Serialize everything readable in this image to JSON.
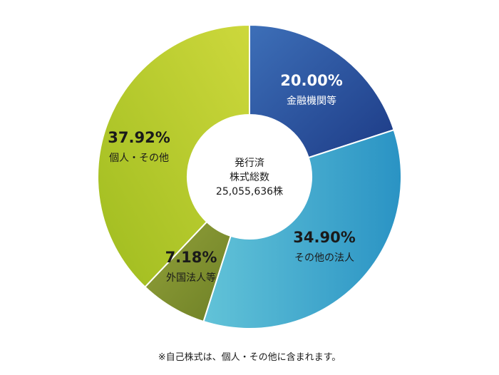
{
  "chart_data": {
    "type": "pie",
    "style": "donut",
    "categories": [
      "金融機関等",
      "その他の法人",
      "外国法人等",
      "個人・その他"
    ],
    "values": [
      20.0,
      34.9,
      7.18,
      37.92
    ],
    "value_labels": [
      "20.00%",
      "34.90%",
      "7.18%",
      "37.92%"
    ],
    "colors": [
      "#2a4d9c",
      "#2f9cc7",
      "#7d8f2a",
      "#b3c933"
    ],
    "center_label": [
      "発行済",
      "株式総数",
      "25,055,636株"
    ]
  },
  "footnote": "※自己株式は、個人・その他に含まれます。"
}
